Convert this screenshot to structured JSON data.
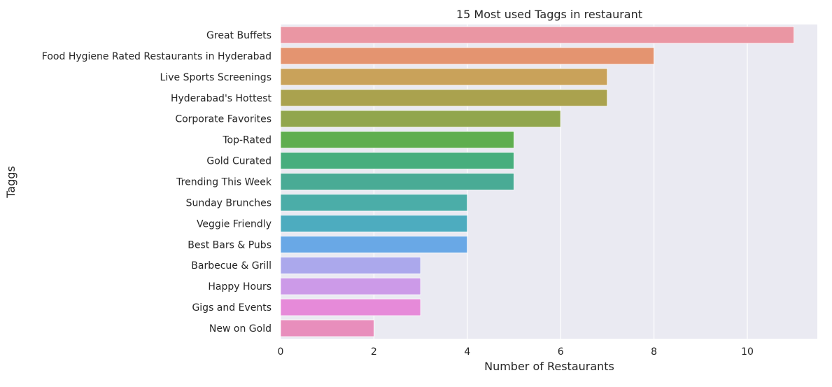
{
  "chart_data": {
    "type": "bar",
    "orientation": "horizontal",
    "title": "15 Most used Taggs in restaurant",
    "xlabel": "Number of Restaurants",
    "ylabel": "Taggs",
    "xlim": [
      0,
      11.5
    ],
    "xticks": [
      "0",
      "2",
      "4",
      "6",
      "8",
      "10"
    ],
    "grid": true,
    "categories": [
      "Great Buffets",
      "Food Hygiene Rated Restaurants in Hyderabad",
      "Live Sports Screenings",
      "Hyderabad's Hottest",
      "Corporate Favorites",
      "Top-Rated",
      "Gold Curated",
      "Trending This Week",
      "Sunday Brunches",
      "Veggie Friendly",
      "Best Bars & Pubs",
      "Barbecue & Grill",
      "Happy Hours",
      "Gigs and Events",
      "New on Gold"
    ],
    "values": [
      11,
      8,
      7,
      7,
      6,
      5,
      5,
      5,
      4,
      4,
      4,
      3,
      3,
      3,
      2
    ],
    "colors": [
      "#ea96a3",
      "#e49470",
      "#c9a25a",
      "#aaa24e",
      "#91a64d",
      "#5fae4f",
      "#47ae7d",
      "#49ab95",
      "#4bada8",
      "#4dacbf",
      "#69a8e6",
      "#aba8ec",
      "#cc9ae8",
      "#e68ad9",
      "#e88ebc"
    ]
  }
}
